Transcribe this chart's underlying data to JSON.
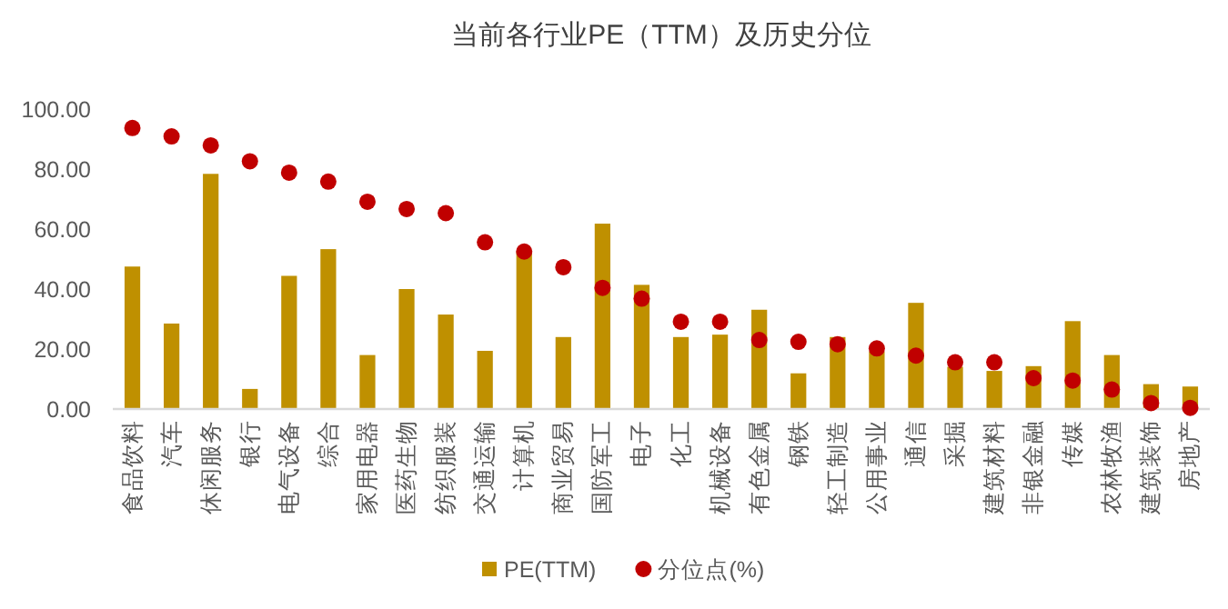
{
  "chart_data": {
    "type": "bar",
    "title": "当前各行业PE（TTM）及历史分位",
    "categories": [
      "食品饮料",
      "汽车",
      "休闲服务",
      "银行",
      "电气设备",
      "综合",
      "家用电器",
      "医药生物",
      "纺织服装",
      "交通运输",
      "计算机",
      "商业贸易",
      "国防军工",
      "电子",
      "化工",
      "机械设备",
      "有色金属",
      "钢铁",
      "轻工制造",
      "公用事业",
      "通信",
      "采掘",
      "建筑材料",
      "非银金融",
      "传媒",
      "农林牧渔",
      "建筑装饰",
      "房地产"
    ],
    "series": [
      {
        "name": "PE(TTM)",
        "type": "bar",
        "color": "#bf9000",
        "values": [
          47.5,
          28.5,
          78.4,
          6.7,
          44.4,
          53.3,
          18,
          40,
          31.5,
          19.4,
          52.5,
          24,
          61.8,
          41.4,
          24,
          24.8,
          33.1,
          11.9,
          24,
          19.2,
          35.4,
          14.1,
          12.7,
          14.3,
          29.3,
          18,
          8.3,
          7.5
        ]
      },
      {
        "name": "分位点(%)",
        "type": "scatter",
        "color": "#c00000",
        "values": [
          93.7,
          90.9,
          87.9,
          82.6,
          78.8,
          75.8,
          69.1,
          66.7,
          65.3,
          55.6,
          52.5,
          47.3,
          40.4,
          36.8,
          29.1,
          29.1,
          23,
          22.4,
          21.6,
          20.2,
          17.8,
          15.6,
          15.6,
          10.3,
          9.5,
          6.5,
          2,
          0.4
        ]
      }
    ],
    "ylim": [
      0,
      100
    ],
    "yticks": [
      {
        "value": 0,
        "label": "0.00"
      },
      {
        "value": 20,
        "label": "20.00"
      },
      {
        "value": 40,
        "label": "40.00"
      },
      {
        "value": 60,
        "label": "60.00"
      },
      {
        "value": 80,
        "label": "80.00"
      },
      {
        "value": 100,
        "label": "100.00"
      }
    ],
    "grid": false,
    "legend": "bottom",
    "marker": "circle"
  }
}
